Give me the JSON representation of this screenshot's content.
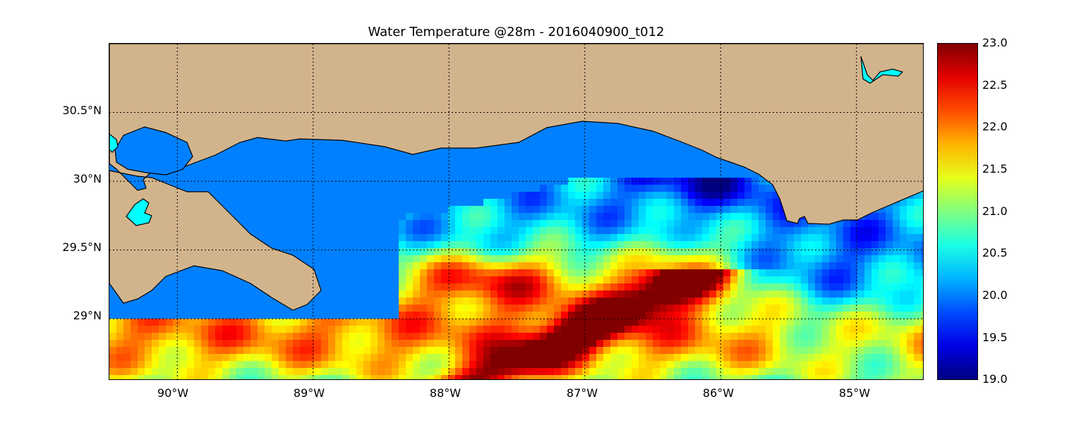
{
  "title": "Water Temperature @28m - 2016040900_t012",
  "map": {
    "projection": "equirectangular",
    "lon_range": [
      -90.5,
      -84.5
    ],
    "lat_range": [
      28.55,
      31.0
    ],
    "land_color": "#d2b48c",
    "water_fill_color": "#0080ff",
    "lake_color": "#00ffff",
    "gridlines": "dotted",
    "lon_ticks": [
      {
        "value": -90,
        "label": "90°W"
      },
      {
        "value": -89,
        "label": "89°W"
      },
      {
        "value": -88,
        "label": "88°W"
      },
      {
        "value": -87,
        "label": "87°W"
      },
      {
        "value": -86,
        "label": "86°W"
      },
      {
        "value": -85,
        "label": "85°W"
      }
    ],
    "lat_ticks": [
      {
        "value": 30.5,
        "label": "30.5°N"
      },
      {
        "value": 30.0,
        "label": "30°N"
      },
      {
        "value": 29.5,
        "label": "29.5°N"
      },
      {
        "value": 29.0,
        "label": "29°N"
      }
    ]
  },
  "colorbar": {
    "colormap": "jet",
    "min": 19.0,
    "max": 23.0,
    "ticks": [
      "23.0",
      "22.5",
      "22.0",
      "21.5",
      "21.0",
      "20.5",
      "20.0",
      "19.5",
      "19.0"
    ]
  }
}
